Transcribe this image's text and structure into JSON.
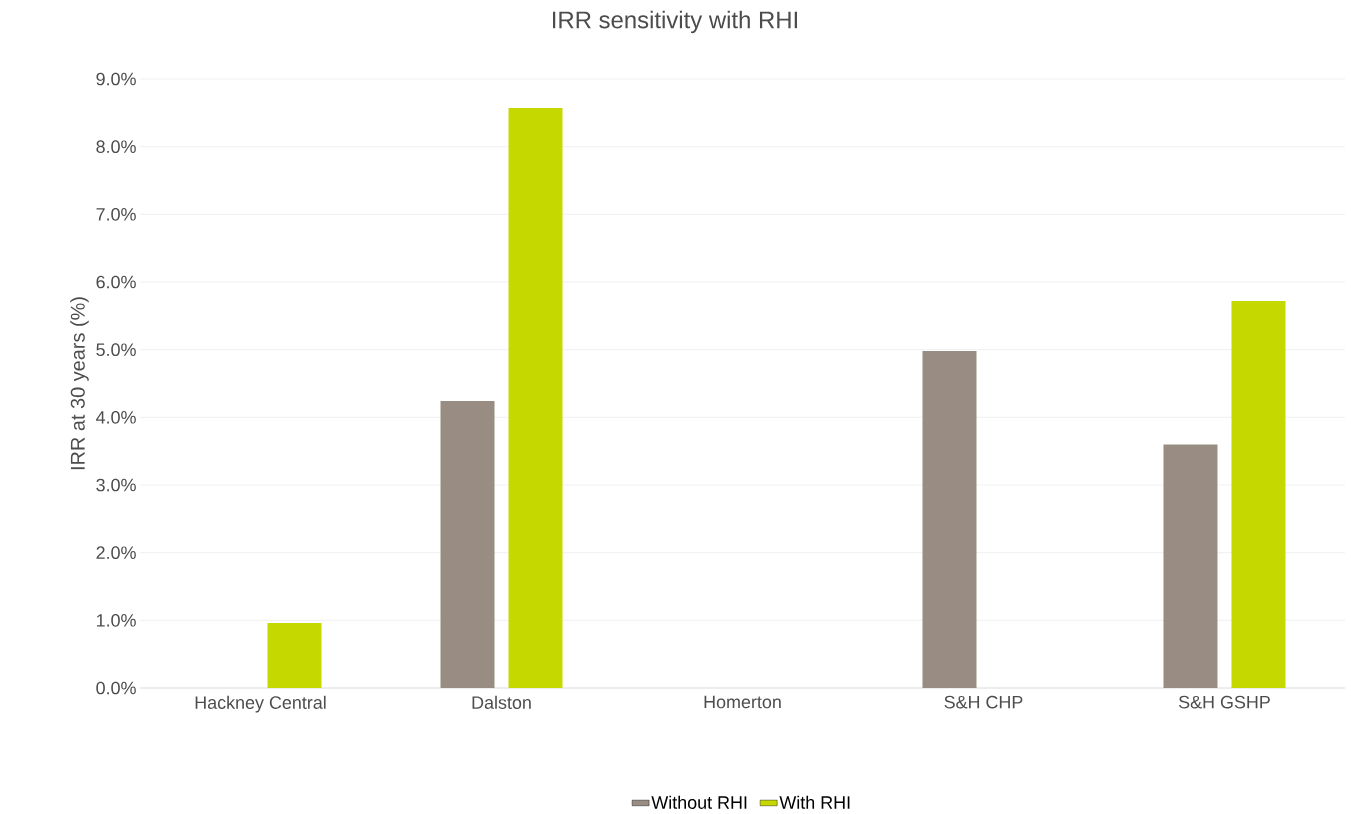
{
  "chart_data": {
    "type": "bar",
    "title": "IRR sensitivity with RHI",
    "ylabel": "IRR at 30 years (%)",
    "categories": [
      "Hackney Central",
      "Dalston",
      "Homerton",
      "S&H  CHP",
      "S&H GSHP"
    ],
    "series": [
      {
        "name": "Without RHI",
        "color": "#998d83",
        "values": [
          null,
          4.24,
          null,
          4.98,
          3.6
        ]
      },
      {
        "name": "With RHI",
        "color": "#c5d800",
        "values": [
          0.96,
          8.57,
          null,
          null,
          5.72
        ]
      }
    ],
    "ylim": [
      0,
      9
    ],
    "yticks": [
      {
        "value": 0,
        "label": "0.0%"
      },
      {
        "value": 1,
        "label": "1.0%"
      },
      {
        "value": 2,
        "label": "2.0%"
      },
      {
        "value": 3,
        "label": "3.0%"
      },
      {
        "value": 4,
        "label": "4.0%"
      },
      {
        "value": 5,
        "label": "5.0%"
      },
      {
        "value": 6,
        "label": "6.0%"
      },
      {
        "value": 7,
        "label": "7.0%"
      },
      {
        "value": 8,
        "label": "8.0%"
      },
      {
        "value": 9,
        "label": "9.0%"
      }
    ],
    "grid": "y",
    "legend": "bottom"
  }
}
